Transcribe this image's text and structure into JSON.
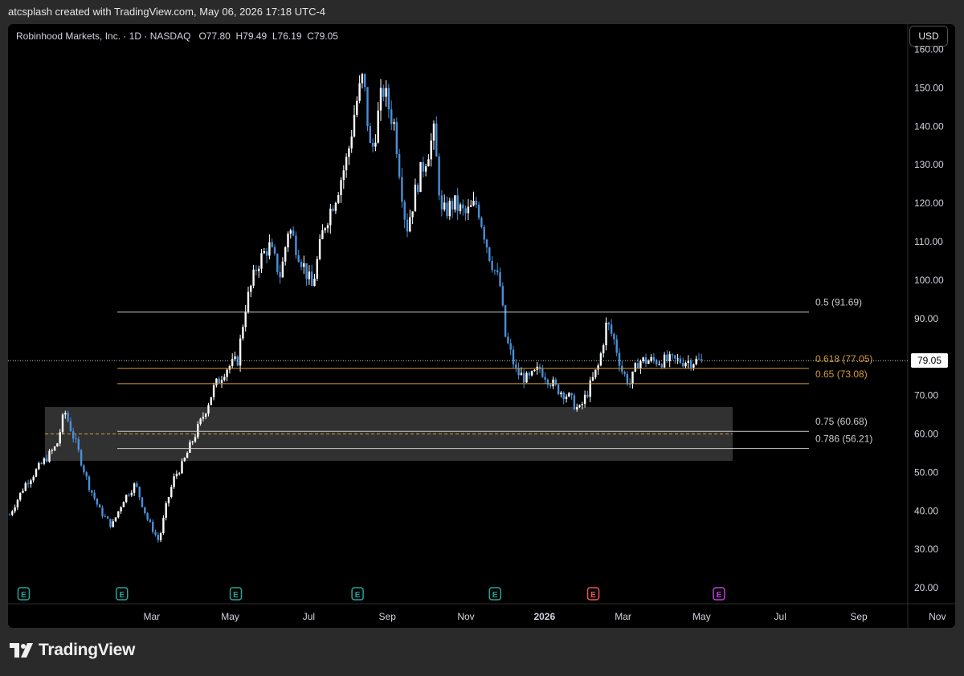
{
  "header": {
    "credit": "atcsplash created with TradingView.com, May 06, 2026 17:18 UTC-4"
  },
  "legend": {
    "symbol": "Robinhood Markets, Inc. · 1D · NASDAQ",
    "open_label": "O",
    "open": "77.80",
    "high_label": "H",
    "high": "79.49",
    "low_label": "L",
    "low": "76.19",
    "close_label": "C",
    "close": "79.05"
  },
  "currency": "USD",
  "last_price": "79.05",
  "colors": {
    "background": "#000000",
    "candle_up": "#ffffff",
    "candle_down": "#4a90d9",
    "fib_white": "#cccccc",
    "fib_orange": "#d49a3a",
    "zone": "#3a3a3a",
    "earnings_green": "#26a69a",
    "earnings_red": "#ef5350",
    "earnings_purple": "#c040e0"
  },
  "footer": {
    "brand": "TradingView"
  },
  "chart_data": {
    "type": "candlestick",
    "y_ticks": [
      "160.00",
      "150.00",
      "140.00",
      "130.00",
      "120.00",
      "110.00",
      "100.00",
      "90.00",
      "80.00",
      "70.00",
      "60.00",
      "50.00",
      "40.00",
      "30.00",
      "20.00"
    ],
    "y_range": [
      20,
      160
    ],
    "x_ticks": [
      {
        "label": "Mar",
        "month": 2.0,
        "bold": false
      },
      {
        "label": "May",
        "month": 4.0,
        "bold": false
      },
      {
        "label": "Jul",
        "month": 6.0,
        "bold": false
      },
      {
        "label": "Sep",
        "month": 8.0,
        "bold": false
      },
      {
        "label": "Nov",
        "month": 10.0,
        "bold": false
      },
      {
        "label": "2026",
        "month": 12.0,
        "bold": true
      },
      {
        "label": "Mar",
        "month": 14.0,
        "bold": false
      },
      {
        "label": "May",
        "month": 16.0,
        "bold": false
      },
      {
        "label": "Jul",
        "month": 18.0,
        "bold": false
      },
      {
        "label": "Sep",
        "month": 20.0,
        "bold": false
      },
      {
        "label": "Nov",
        "month": 22.0,
        "bold": false
      }
    ],
    "fib_levels": [
      {
        "label": "0.5 (91.69)",
        "price": 91.69,
        "color": "white"
      },
      {
        "label": "0.618 (77.05)",
        "price": 77.05,
        "color": "orange"
      },
      {
        "label": "0.65 (73.08)",
        "price": 73.08,
        "color": "orange"
      },
      {
        "label": "0.75 (60.68)",
        "price": 60.68,
        "color": "white"
      },
      {
        "label": "0.786 (56.21)",
        "price": 56.21,
        "color": "white"
      }
    ],
    "zone": {
      "top": 67,
      "bottom": 53,
      "mid_dashed": 60
    },
    "earnings": [
      {
        "month": 1.4,
        "color": "green"
      },
      {
        "month": 3.9,
        "color": "green"
      },
      {
        "month": 6.8,
        "color": "green"
      },
      {
        "month": 9.9,
        "color": "green"
      },
      {
        "month": 13.4,
        "color": "green"
      },
      {
        "month": 15.9,
        "color": "red"
      },
      {
        "month": 19.1,
        "color": "purple"
      }
    ],
    "trend": [
      [
        0.0,
        39
      ],
      [
        0.4,
        47
      ],
      [
        0.8,
        52
      ],
      [
        1.2,
        57
      ],
      [
        1.4,
        66
      ],
      [
        1.7,
        57
      ],
      [
        2.0,
        47
      ],
      [
        2.3,
        40
      ],
      [
        2.6,
        36
      ],
      [
        2.9,
        43
      ],
      [
        3.2,
        47
      ],
      [
        3.5,
        38
      ],
      [
        3.8,
        32
      ],
      [
        4.0,
        42
      ],
      [
        4.2,
        49
      ],
      [
        4.4,
        52
      ],
      [
        4.6,
        57
      ],
      [
        4.9,
        64
      ],
      [
        5.2,
        72
      ],
      [
        5.5,
        77
      ],
      [
        5.8,
        79
      ],
      [
        6.0,
        93
      ],
      [
        6.3,
        104
      ],
      [
        6.6,
        109
      ],
      [
        6.9,
        101
      ],
      [
        7.1,
        114
      ],
      [
        7.4,
        106
      ],
      [
        7.7,
        98
      ],
      [
        8.0,
        114
      ],
      [
        8.3,
        122
      ],
      [
        8.6,
        132
      ],
      [
        8.8,
        145
      ],
      [
        9.0,
        153
      ],
      [
        9.2,
        132
      ],
      [
        9.5,
        150
      ],
      [
        9.8,
        140
      ],
      [
        10.1,
        113
      ],
      [
        10.4,
        126
      ],
      [
        10.8,
        138
      ],
      [
        11.0,
        117
      ],
      [
        11.3,
        120
      ],
      [
        11.6,
        117
      ],
      [
        11.9,
        120
      ],
      [
        12.2,
        107
      ],
      [
        12.5,
        98
      ],
      [
        12.6,
        86
      ],
      [
        12.9,
        76
      ],
      [
        13.2,
        74
      ],
      [
        13.5,
        77
      ],
      [
        13.9,
        72
      ],
      [
        14.2,
        70
      ],
      [
        14.5,
        66
      ],
      [
        14.8,
        73
      ],
      [
        15.0,
        78
      ],
      [
        15.2,
        89
      ],
      [
        15.4,
        84
      ],
      [
        15.6,
        76
      ],
      [
        15.8,
        73
      ],
      [
        16.0,
        79
      ]
    ],
    "last_price": 79.05
  }
}
